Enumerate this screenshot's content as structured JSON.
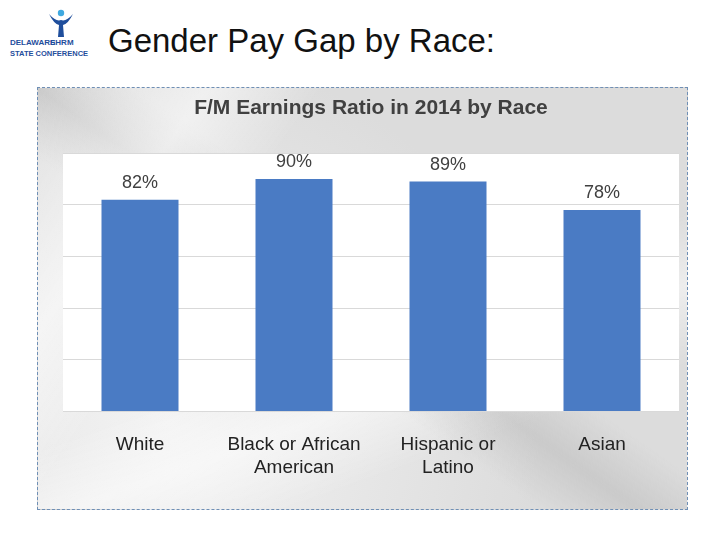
{
  "slide": {
    "heading": "Gender Pay Gap by Race:",
    "logo": [
      "DELAWARE",
      "SHRM",
      "STATE CONFERENCE"
    ]
  },
  "chart_data": {
    "type": "bar",
    "title": "F/M Earnings Ratio in 2014 by Race",
    "categories": [
      "White",
      "Black or African American",
      "Hispanic or Latino",
      "Asian"
    ],
    "values": [
      82,
      90,
      89,
      78
    ],
    "value_labels": [
      "82%",
      "90%",
      "89%",
      "78%"
    ],
    "color": "#4a7bc4",
    "ylim": [
      0,
      100
    ],
    "yticks": [
      0,
      20,
      40,
      60,
      80,
      100
    ],
    "grid": true,
    "data_labels": true,
    "tick_labels": "x"
  }
}
